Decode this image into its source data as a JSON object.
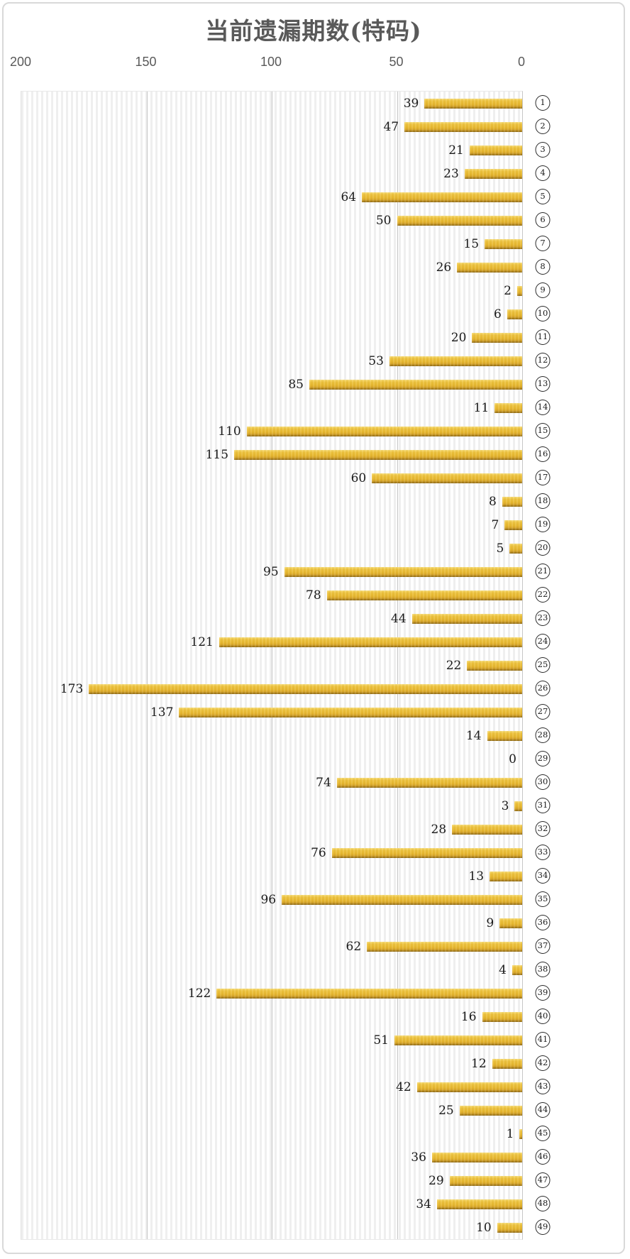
{
  "title": "当前遗漏期数(特码)",
  "colors": {
    "bar_gold": "#e8b82f",
    "bar_gold_dark": "#8f6a14",
    "bar_gold_light": "#f7dc77",
    "title_text": "#595959",
    "axis_text": "#595959",
    "value_text": "#1a1a1a",
    "gridline": "#c6c6c6",
    "plot_stripe": "#efefef",
    "card_border": "#d9d9d9"
  },
  "chart_data": {
    "type": "bar",
    "orientation": "horizontal",
    "title": "当前遗漏期数(特码)",
    "categories": [
      1,
      2,
      3,
      4,
      5,
      6,
      7,
      8,
      9,
      10,
      11,
      12,
      13,
      14,
      15,
      16,
      17,
      18,
      19,
      20,
      21,
      22,
      23,
      24,
      25,
      26,
      27,
      28,
      29,
      30,
      31,
      32,
      33,
      34,
      35,
      36,
      37,
      38,
      39,
      40,
      41,
      42,
      43,
      44,
      45,
      46,
      47,
      48,
      49
    ],
    "category_style": "circled-number",
    "category_axis_side": "right",
    "values": [
      39,
      47,
      21,
      23,
      64,
      50,
      15,
      26,
      2,
      6,
      20,
      53,
      85,
      11,
      110,
      115,
      60,
      8,
      7,
      5,
      95,
      78,
      44,
      121,
      22,
      173,
      137,
      14,
      0,
      74,
      3,
      28,
      76,
      13,
      96,
      9,
      62,
      4,
      122,
      16,
      51,
      12,
      42,
      25,
      1,
      36,
      29,
      34,
      10
    ],
    "value_axis": "top",
    "value_axis_reversed": true,
    "xlim": [
      200,
      0
    ],
    "x_ticks": [
      "200",
      "150",
      "100",
      "50",
      "0"
    ],
    "grid": true,
    "legend": "none",
    "data_labels": "outside-end"
  }
}
